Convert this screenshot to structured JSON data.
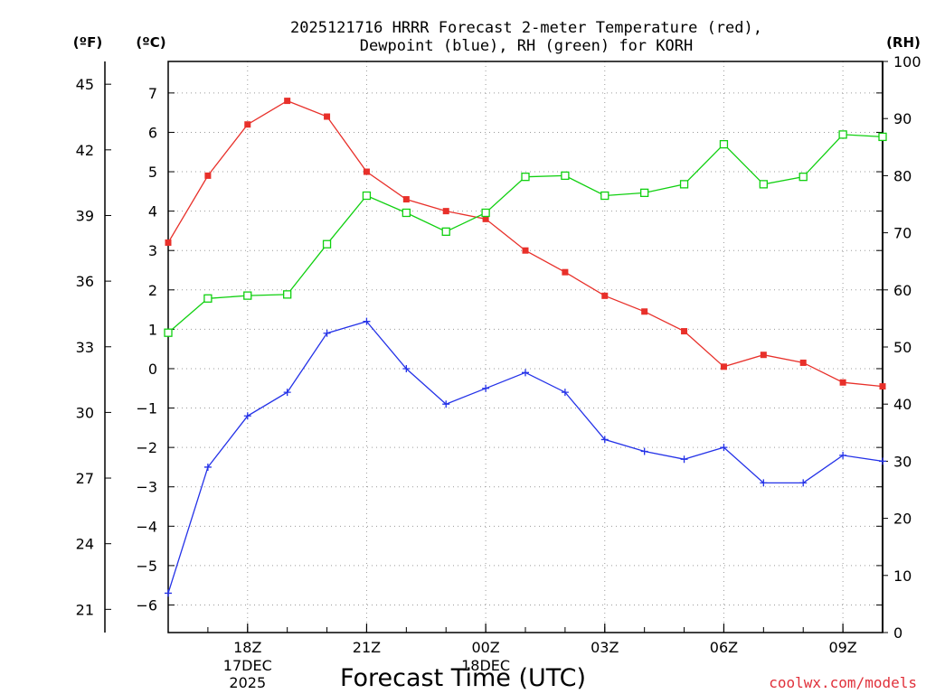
{
  "chart_data": {
    "type": "line",
    "title_line1": "2025121716 HRRR Forecast 2-meter Temperature (red),",
    "title_line2": "Dewpoint (blue), RH (green) for KORH",
    "xlabel": "Forecast Time (UTC)",
    "credit": "coolwx.com/models",
    "units": {
      "fahrenheit": "(ºF)",
      "celsius": "(ºC)",
      "rh": "(RH)"
    },
    "x_hours": [
      16,
      17,
      18,
      19,
      20,
      21,
      22,
      23,
      24,
      25,
      26,
      27,
      28,
      29,
      30,
      31,
      32,
      33,
      34
    ],
    "x_tick_hours": [
      18,
      21,
      24,
      27,
      30,
      33
    ],
    "x_tick_labels": [
      "18Z",
      "21Z",
      "00Z",
      "03Z",
      "06Z",
      "09Z"
    ],
    "date_labels": [
      {
        "hour": 18,
        "lines": [
          "17DEC",
          "2025"
        ]
      },
      {
        "hour": 24,
        "lines": [
          "18DEC"
        ]
      }
    ],
    "xlim": [
      16,
      34
    ],
    "celsius_ylim": [
      -6.7,
      7.8
    ],
    "celsius_ticks": [
      -6,
      -5,
      -4,
      -3,
      -2,
      -1,
      0,
      1,
      2,
      3,
      4,
      5,
      6,
      7
    ],
    "celsius_tick_labels": [
      "−6",
      "−5",
      "−4",
      "−3",
      "−2",
      "−1",
      "0",
      "1",
      "2",
      "3",
      "4",
      "5",
      "6",
      "7"
    ],
    "fahrenheit_ticks": [
      21,
      24,
      27,
      30,
      33,
      36,
      39,
      42,
      45
    ],
    "fahrenheit_tick_labels": [
      "21",
      "24",
      "27",
      "30",
      "33",
      "36",
      "39",
      "42",
      "45"
    ],
    "rh_ylim": [
      0,
      100
    ],
    "rh_ticks": [
      0,
      10,
      20,
      30,
      40,
      50,
      60,
      70,
      80,
      90,
      100
    ],
    "rh_tick_labels": [
      "0",
      "10",
      "20",
      "30",
      "40",
      "50",
      "60",
      "70",
      "80",
      "90",
      "100"
    ],
    "grid": true,
    "series": [
      {
        "name": "Temperature",
        "axis": "celsius",
        "color": "#e8302a",
        "marker": "filled-square",
        "values": [
          3.2,
          4.9,
          6.2,
          6.8,
          6.4,
          5.0,
          4.3,
          4.0,
          3.8,
          3.0,
          2.45,
          1.85,
          1.45,
          0.95,
          0.05,
          0.35,
          0.15,
          -0.35,
          -0.45
        ]
      },
      {
        "name": "Dewpoint",
        "axis": "celsius",
        "color": "#2432e8",
        "marker": "plus",
        "values": [
          -5.7,
          -2.5,
          -1.2,
          -0.6,
          0.9,
          1.2,
          0.0,
          -0.9,
          -0.5,
          -0.1,
          -0.6,
          -1.8,
          -2.1,
          -2.3,
          -2.0,
          -2.9,
          -2.9,
          -2.2,
          -2.35
        ]
      },
      {
        "name": "RH",
        "axis": "rh",
        "color": "#10d010",
        "marker": "open-square",
        "values": [
          52.5,
          58.5,
          59.0,
          59.2,
          68.0,
          76.5,
          73.5,
          70.2,
          73.5,
          79.8,
          80.0,
          76.5,
          77.0,
          78.5,
          85.5,
          78.5,
          79.8,
          87.2,
          86.8
        ]
      }
    ]
  }
}
